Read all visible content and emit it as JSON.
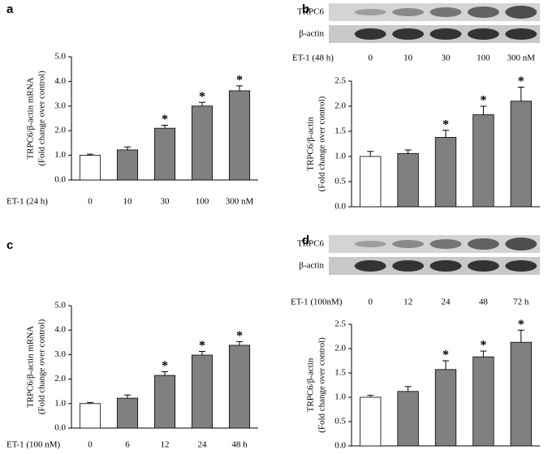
{
  "chart_data": [
    {
      "type": "bar",
      "panel": "a",
      "ylabel": [
        "TRPC6/β-actin mRNA",
        "(Fold change over control)"
      ],
      "xlabel": "ET-1 (24 h)",
      "categories": [
        "0",
        "10",
        "30",
        "100",
        "300 nM"
      ],
      "values": [
        1.0,
        1.22,
        2.1,
        3.0,
        3.62
      ],
      "errors": [
        0.05,
        0.12,
        0.12,
        0.15,
        0.2
      ],
      "significance": [
        null,
        null,
        "*",
        "*",
        "*"
      ],
      "colors": [
        "#ffffff",
        "#808080",
        "#808080",
        "#808080",
        "#808080"
      ],
      "ylim": [
        0,
        5
      ],
      "yticks": [
        {
          "value": 0,
          "label": "0.0"
        },
        {
          "value": 1,
          "label": "1.0"
        },
        {
          "value": 2,
          "label": "2.0"
        },
        {
          "value": 3,
          "label": "3.0"
        },
        {
          "value": 4,
          "label": "4.0"
        },
        {
          "value": 5,
          "label": "5.0"
        }
      ]
    },
    {
      "type": "bar",
      "panel": "b",
      "blot_rows": [
        "TRPC6",
        "β-actin"
      ],
      "ylabel": [
        "TRPC6/β-actin",
        "(Fold change over control)"
      ],
      "xlabel": "ET-1 (48 h)",
      "categories": [
        "0",
        "10",
        "30",
        "100",
        "300 nM"
      ],
      "values": [
        1.0,
        1.06,
        1.38,
        1.83,
        2.1
      ],
      "errors": [
        0.1,
        0.07,
        0.14,
        0.17,
        0.28
      ],
      "significance": [
        null,
        null,
        "*",
        "*",
        "*"
      ],
      "colors": [
        "#ffffff",
        "#808080",
        "#808080",
        "#808080",
        "#808080"
      ],
      "ylim": [
        0,
        2.5
      ],
      "yticks": [
        {
          "value": 0,
          "label": "0.0"
        },
        0.5,
        {
          "value": 1,
          "label": "1.0"
        },
        1.5,
        {
          "value": 2,
          "label": "2.0"
        },
        2.5
      ]
    },
    {
      "type": "bar",
      "panel": "c",
      "ylabel": [
        "TRPC6/β-actin mRNA",
        "(Fold change over control)"
      ],
      "xlabel": "ET-1 (100 nM)",
      "categories": [
        "0",
        "6",
        "12",
        "24",
        "48  h"
      ],
      "values": [
        1.0,
        1.22,
        2.15,
        2.98,
        3.38
      ],
      "errors": [
        0.04,
        0.13,
        0.15,
        0.15,
        0.15
      ],
      "significance": [
        null,
        null,
        "*",
        "*",
        "*"
      ],
      "colors": [
        "#ffffff",
        "#808080",
        "#808080",
        "#808080",
        "#808080"
      ],
      "ylim": [
        0,
        5
      ],
      "yticks": [
        {
          "value": 0,
          "label": "0.0"
        },
        {
          "value": 1,
          "label": "1.0"
        },
        {
          "value": 2,
          "label": "2.0"
        },
        {
          "value": 3,
          "label": "3.0"
        },
        {
          "value": 4,
          "label": "4.0"
        },
        {
          "value": 5,
          "label": "5.0"
        }
      ]
    },
    {
      "type": "bar",
      "panel": "d",
      "blot_rows": [
        "TRPC6",
        "β-actin"
      ],
      "ylabel": [
        "TRPC6/β-actin",
        "(Fold change over control)"
      ],
      "xlabel": "ET-1 (100nM)",
      "categories": [
        "0",
        "12",
        "24",
        "48",
        "72  h"
      ],
      "values": [
        1.0,
        1.12,
        1.57,
        1.83,
        2.13
      ],
      "errors": [
        0.04,
        0.1,
        0.18,
        0.12,
        0.25
      ],
      "significance": [
        null,
        null,
        "*",
        "*",
        "*"
      ],
      "colors": [
        "#ffffff",
        "#808080",
        "#808080",
        "#808080",
        "#808080"
      ],
      "ylim": [
        0,
        2.5
      ],
      "yticks": [
        {
          "value": 0,
          "label": "0.0"
        },
        0.5,
        {
          "value": 1,
          "label": "1.0"
        },
        1.5,
        {
          "value": 2,
          "label": "2.0"
        },
        2.5
      ]
    }
  ]
}
